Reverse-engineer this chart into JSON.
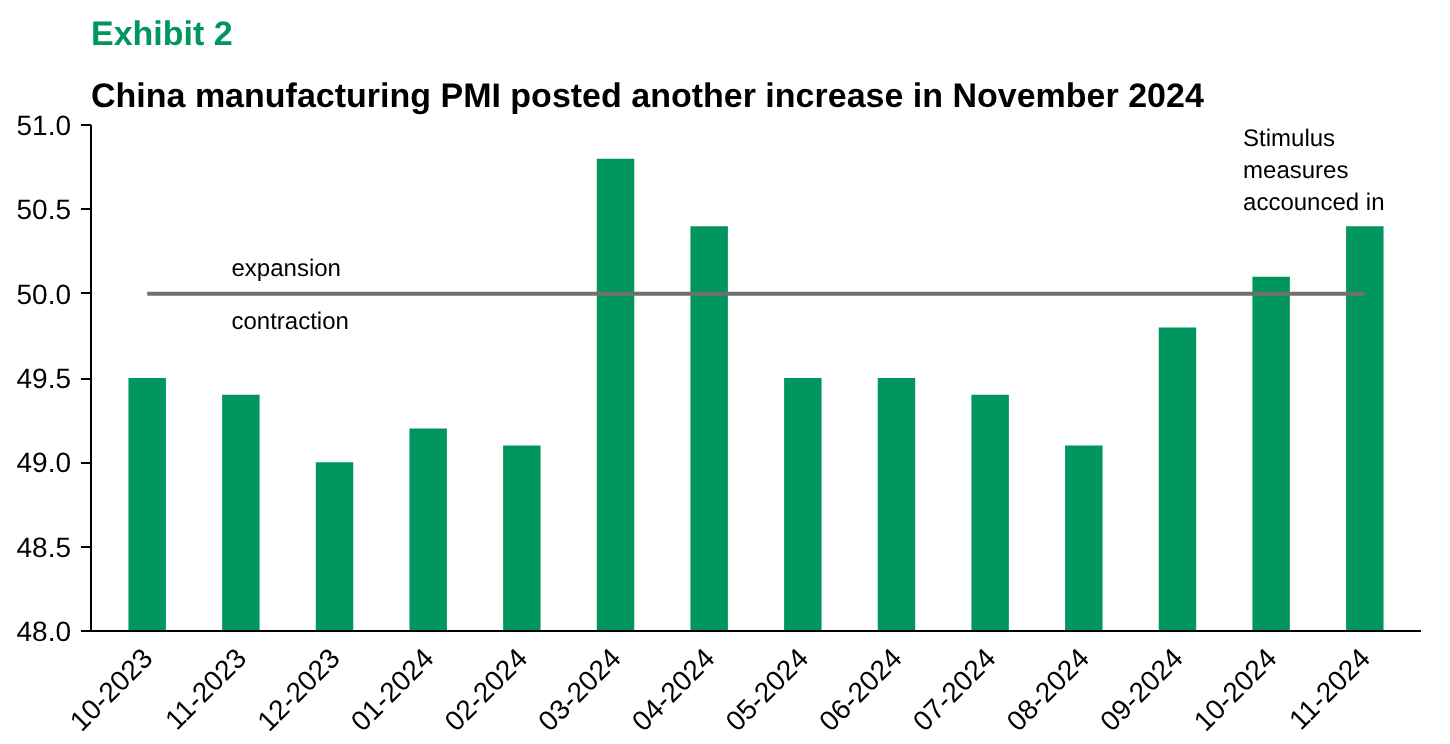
{
  "chart_data": {
    "type": "bar",
    "subtitle": "Exhibit 2",
    "title": "China manufacturing PMI posted another increase in November 2024",
    "categories": [
      "10-2023",
      "11-2023",
      "12-2023",
      "01-2024",
      "02-2024",
      "03-2024",
      "04-2024",
      "05-2024",
      "06-2024",
      "07-2024",
      "08-2024",
      "09-2024",
      "10-2024",
      "11-2024"
    ],
    "values": [
      49.5,
      49.4,
      49.0,
      49.2,
      49.1,
      50.8,
      50.4,
      49.5,
      49.5,
      49.4,
      49.1,
      49.8,
      50.1,
      50.4
    ],
    "color": "#00965e",
    "ylim": [
      48,
      51
    ],
    "yticks": [
      {
        "value": 48,
        "label": "48.0"
      },
      {
        "value": 48.5,
        "label": "48.5"
      },
      {
        "value": 49,
        "label": "49.0"
      },
      {
        "value": 49.5,
        "label": "49.5"
      },
      {
        "value": 50,
        "label": "50.0"
      },
      {
        "value": 50.5,
        "label": "50.5"
      },
      {
        "value": 51,
        "label": "51.0"
      }
    ],
    "ref_lines": [
      {
        "axis": "y",
        "value": 50,
        "color": "#707070"
      }
    ],
    "annotations": [
      "expansion",
      "contraction",
      "Stimulus\nmeasures\naccounced in"
    ]
  }
}
